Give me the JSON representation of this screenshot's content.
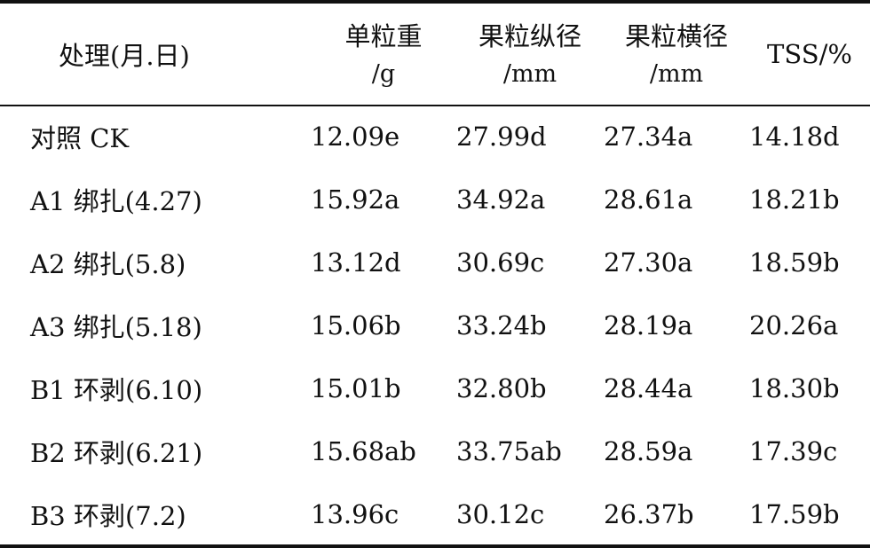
{
  "table": {
    "header": [
      [
        "处理(月.日)"
      ],
      [
        "单粒重",
        "/g"
      ],
      [
        "果粒纵径",
        "/mm"
      ],
      [
        "果粒横径",
        "/mm"
      ],
      [
        "TSS/%"
      ]
    ],
    "rows": [
      [
        "对照 CK",
        "12.09e",
        "27.99d",
        "27.34a",
        "14.18d"
      ],
      [
        "A1 绑扎(4.27)",
        "15.92a",
        "34.92a",
        "28.61a",
        "18.21b"
      ],
      [
        "A2 绑扎(5.8)",
        "13.12d",
        "30.69c",
        "27.30a",
        "18.59b"
      ],
      [
        "A3 绑扎(5.18)",
        "15.06b",
        "33.24b",
        "28.19a",
        "20.26a"
      ],
      [
        "B1 环剥(6.10)",
        "15.01b",
        "32.80b",
        "28.44a",
        "18.30b"
      ],
      [
        "B2 环剥(6.21)",
        "15.68ab",
        "33.75ab",
        "28.59a",
        "17.39c"
      ],
      [
        "B3 环剥(7.2)",
        "13.96c",
        "30.12c",
        "26.37b",
        "17.59b"
      ]
    ]
  }
}
